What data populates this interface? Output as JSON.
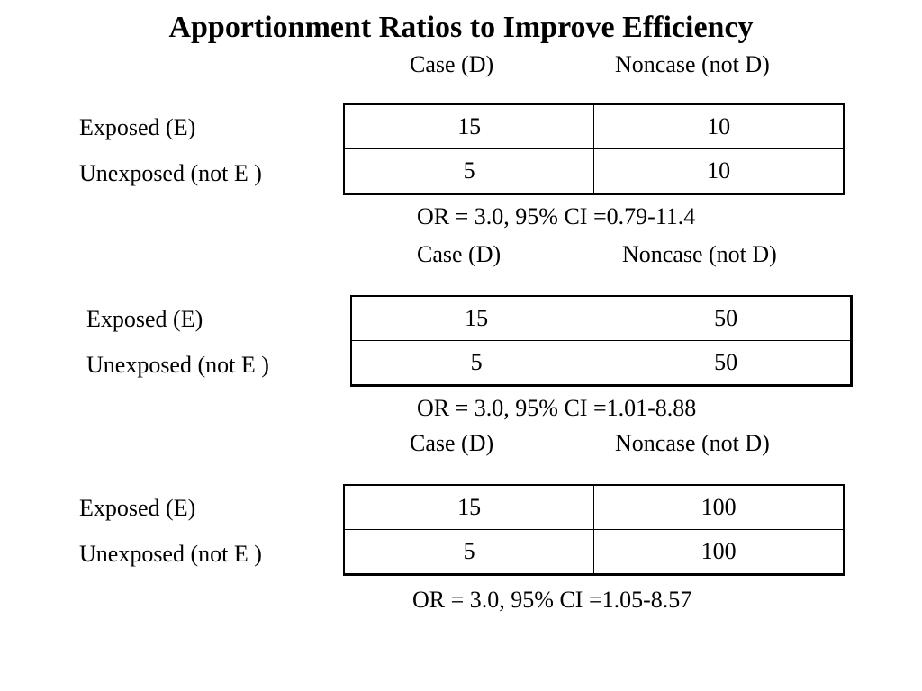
{
  "title": "Apportionment Ratios to Improve Efficiency",
  "tables": [
    {
      "col_headers": [
        "Case (D)",
        "Noncase (not D)"
      ],
      "rows": [
        {
          "label": "Exposed (E)",
          "values": [
            "15",
            "10"
          ]
        },
        {
          "label": "Unexposed (not E )",
          "values": [
            "5",
            "10"
          ]
        }
      ],
      "summary": "OR = 3.0, 95% CI =0.79-11.4"
    },
    {
      "col_headers": [
        "Case (D)",
        "Noncase (not D)"
      ],
      "rows": [
        {
          "label": "Exposed (E)",
          "values": [
            "15",
            "50"
          ]
        },
        {
          "label": "Unexposed (not E )",
          "values": [
            "5",
            "50"
          ]
        }
      ],
      "summary": "OR = 3.0, 95% CI =1.01-8.88"
    },
    {
      "col_headers": [
        "Case (D)",
        "Noncase (not D)"
      ],
      "rows": [
        {
          "label": "Exposed (E)",
          "values": [
            "15",
            "100"
          ]
        },
        {
          "label": "Unexposed (not E )",
          "values": [
            "5",
            "100"
          ]
        }
      ],
      "summary": "OR = 3.0, 95% CI =1.05-8.57"
    }
  ]
}
